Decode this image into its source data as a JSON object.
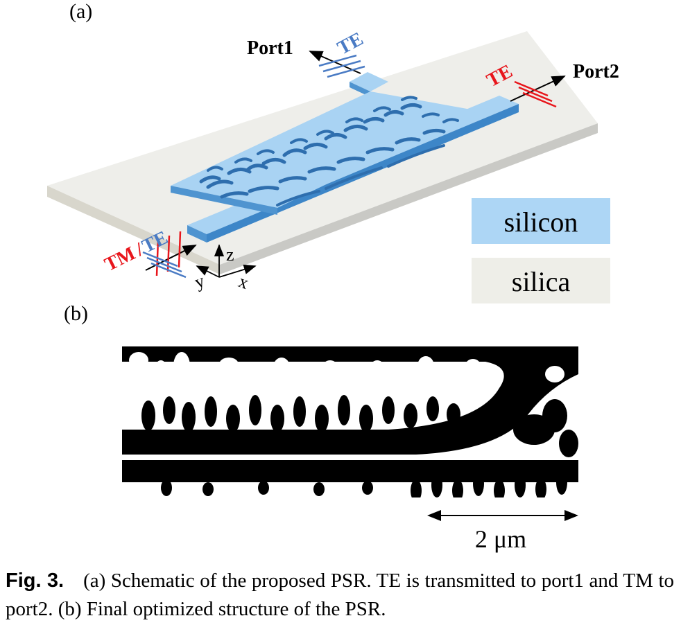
{
  "figure": {
    "panel_a_label": "(a)",
    "panel_b_label": "(b)",
    "port1_label": "Port1",
    "port2_label": "Port2",
    "te_label_port1": "TE",
    "te_label_port2": "TE",
    "input_tm_label": "TM",
    "input_slash": "/",
    "input_te_label": "TE",
    "axis_z": "z",
    "axis_y": "y",
    "axis_x": "x",
    "legend": [
      {
        "label": "silicon",
        "color": "#add6f5"
      },
      {
        "label": "silica",
        "color": "#eeeee8"
      }
    ],
    "scale_bar_label": "2 μm",
    "colors": {
      "te_mode": "#4a7bc4",
      "tm_mode": "#e8161c",
      "silicon": "#a9d3f3",
      "silicon_side": "#4f94d0",
      "silica_top": "#eeeeea",
      "silica_side": "#cfcfcb"
    }
  },
  "caption": {
    "figure_number": "Fig. 3.",
    "text": "(a) Schematic of the proposed PSR. TE is transmitted to port1 and TM to port2. (b) Final optimized structure of the PSR."
  }
}
